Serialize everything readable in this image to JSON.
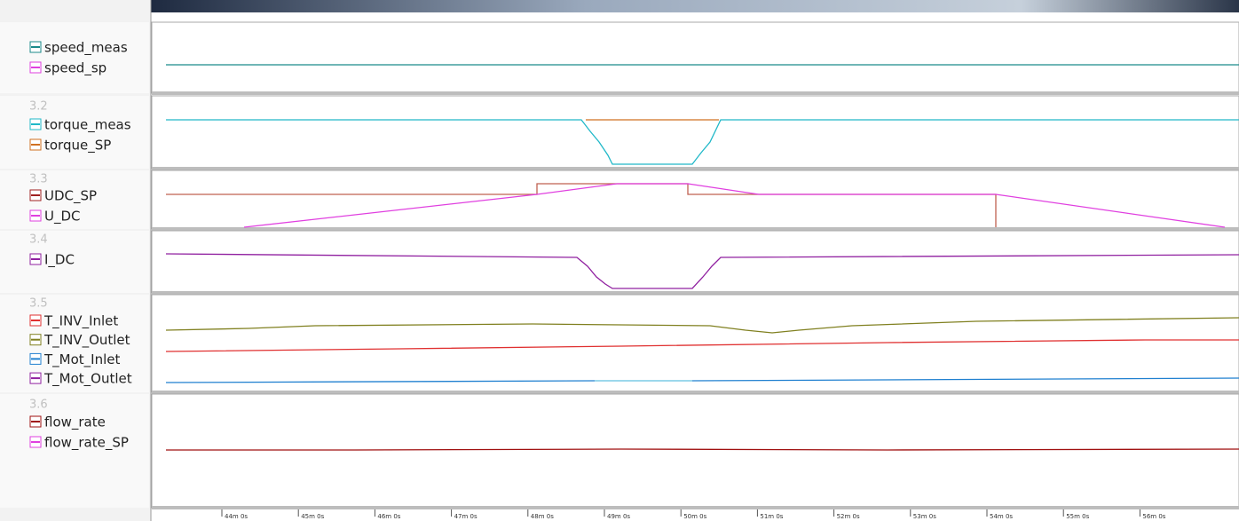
{
  "panels": [
    {
      "signals": [
        {
          "name": "speed_meas",
          "color": "#1a8a8a"
        },
        {
          "name": "speed_sp",
          "color": "#e040e0"
        }
      ]
    },
    {
      "id": "3.2",
      "signals": [
        {
          "name": "torque_meas",
          "color": "#20b8c8"
        },
        {
          "name": "torque_SP",
          "color": "#d07020"
        }
      ]
    },
    {
      "id": "3.3",
      "signals": [
        {
          "name": "UDC_SP",
          "color": "#a02020"
        },
        {
          "name": "U_DC",
          "color": "#e040e0"
        }
      ]
    },
    {
      "id": "3.4",
      "signals": [
        {
          "name": "I_DC",
          "color": "#9020a0"
        }
      ]
    },
    {
      "id": "3.5",
      "signals": [
        {
          "name": "T_INV_Inlet",
          "color": "#e03030"
        },
        {
          "name": "T_INV_Outlet",
          "color": "#808020"
        },
        {
          "name": "T_Mot_Inlet",
          "color": "#2080d0"
        },
        {
          "name": "T_Mot_Outlet",
          "color": "#9020a0"
        }
      ]
    },
    {
      "id": "3.6",
      "signals": [
        {
          "name": "flow_rate",
          "color": "#a01010"
        },
        {
          "name": "flow_rate_SP",
          "color": "#e040e0"
        }
      ]
    }
  ],
  "time_axis": {
    "labels": [
      "44m 0s",
      "45m 0s",
      "46m 0s",
      "47m 0s",
      "48m 0s",
      "49m 0s",
      "50m 0s",
      "51m 0s",
      "52m 0s",
      "53m 0s",
      "54m 0s",
      "55m 0s",
      "56m 0s"
    ]
  }
}
